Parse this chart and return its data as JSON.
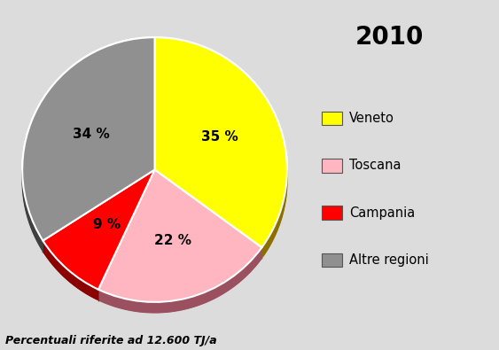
{
  "title": "2010",
  "slices": [
    35,
    22,
    9,
    34
  ],
  "labels": [
    "Veneto",
    "Toscana",
    "Campania",
    "Altre regioni"
  ],
  "colors": [
    "#FFFF00",
    "#FFB6C1",
    "#FF0000",
    "#909090"
  ],
  "shadow_colors": [
    "#7a5a00",
    "#9b6e6e",
    "#8b0000",
    "#505050"
  ],
  "pct_labels": [
    "35 %",
    "22 %",
    "9 %",
    "34 %"
  ],
  "subtitle": "Percentuali riferite ad 12.600 TJ/a",
  "startangle": 90,
  "background_color": "#DCDCDC",
  "legend_colors": [
    "#FFFF00",
    "#FFB6C1",
    "#FF0000",
    "#909090"
  ]
}
